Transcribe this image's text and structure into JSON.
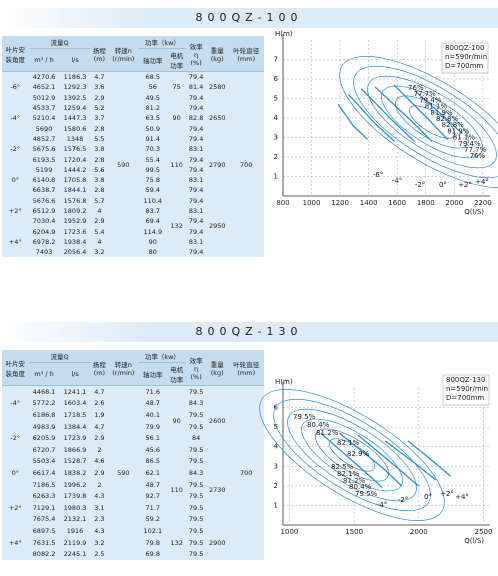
{
  "sections": [
    {
      "model": "800QZ-100",
      "table": {
        "headers": {
          "angle": "叶片安\n装角度",
          "flow": "流量Q",
          "flow_m3h": "m³ / h",
          "flow_ls": "l/s",
          "head": "扬程\n(m)",
          "speed": "转速n\n(r/min)",
          "power": "功率（kw）",
          "shaft": "轴功率",
          "motor": "电机\n功率",
          "eff": "效率\nη\n(%)",
          "weight": "重量\n(kg)",
          "dia": "叶轮直径\n(mm)"
        },
        "speed": 590,
        "diameter": 700,
        "groups": [
          {
            "angle": "-6°",
            "rows": [
              [
                4270.6,
                1186.3,
                4.7,
                68.5,
                79.4
              ],
              [
                4652.1,
                1292.3,
                3.6,
                56.0,
                81.4
              ],
              [
                5012.9,
                1392.5,
                2.9,
                49.5,
                79.4
              ]
            ],
            "motor": 75,
            "weight": 2580
          },
          {
            "angle": "-4°",
            "rows": [
              [
                4533.7,
                1259.4,
                5.2,
                81.2,
                79.4
              ],
              [
                5210.4,
                1447.3,
                3.7,
                63.5,
                82.8
              ],
              [
                5690.0,
                1580.6,
                2.8,
                50.9,
                79.4
              ]
            ],
            "motor": 90,
            "weight": 2650
          },
          {
            "angle": "-2°",
            "rows": [
              [
                4852.7,
                1348.0,
                5.5,
                91.4,
                79.4
              ],
              [
                5675.6,
                1576.5,
                3.8,
                70.3,
                83.1
              ],
              [
                6193.5,
                1720.4,
                2.8,
                55.4,
                79.4
              ]
            ],
            "motor": 110,
            "weight": 2790
          },
          {
            "angle": "0°",
            "rows": [
              [
                5199.0,
                1444.2,
                5.6,
                99.5,
                79.4
              ],
              [
                6140.8,
                1705.8,
                3.8,
                75.8,
                83.1
              ],
              [
                6638.7,
                1844.1,
                2.8,
                59.4,
                79.4
              ]
            ],
            "motor": null,
            "weight": null
          },
          {
            "angle": "+2°",
            "rows": [
              [
                5676.6,
                1576.8,
                5.7,
                110.4,
                79.4
              ],
              [
                6512.9,
                1809.2,
                4.0,
                83.7,
                83.1
              ],
              [
                7030.4,
                1952.9,
                2.9,
                69.4,
                79.4
              ]
            ],
            "motor": 132,
            "weight": 2950
          },
          {
            "angle": "+4°",
            "rows": [
              [
                6204.9,
                1723.6,
                5.4,
                114.9,
                79.4
              ],
              [
                6978.2,
                1938.4,
                4.0,
                90.0,
                83.1
              ],
              [
                7403.0,
                2056.4,
                3.2,
                80.0,
                79.4
              ]
            ],
            "motor": null,
            "weight": null
          }
        ]
      },
      "chart": {
        "type": "line",
        "y_label": "H(m)",
        "x_label": "Q(l/S)",
        "legend": [
          "800QZ-100",
          "n=590r/min",
          "D=700mm"
        ],
        "xlim": [
          800,
          2250
        ],
        "ylim": [
          0,
          8
        ],
        "xticks": [
          800,
          1000,
          1200,
          1400,
          1600,
          1800,
          2000,
          2200
        ],
        "yticks": [
          1,
          2,
          3,
          4,
          5,
          6,
          7
        ],
        "grid": true,
        "efficiency_labels": [
          "76%",
          "77.7%",
          "79.4%",
          "81.1%",
          "81.9%",
          "82.8%",
          "82.8%",
          "81.9%",
          "81.1%",
          "79.4%",
          "77.7%",
          "76%"
        ],
        "angle_labels": [
          "-6°",
          "-4°",
          "-2°",
          "0°",
          "+2°",
          "+4°"
        ]
      }
    },
    {
      "model": "800QZ-130",
      "table": {
        "headers": {
          "angle": "叶片安\n装角度",
          "flow": "流量Q",
          "flow_m3h": "m³ / h",
          "flow_ls": "l/s",
          "head": "扬程\n(m)",
          "speed": "转速n\n(r/min)",
          "power": "功率（kw）",
          "shaft": "轴功率",
          "motor": "电机\n功率",
          "eff": "效率\nη\n(%)",
          "weight": "重量\n(kg)",
          "dia": "叶轮直径\n(mm)"
        },
        "speed": 590,
        "diameter": 700,
        "groups": [
          {
            "angle": "-4°",
            "rows": [
              [
                4468.1,
                1241.1,
                4.7,
                71.6,
                79.5
              ],
              [
                5772.2,
                1603.4,
                2.6,
                48.7,
                84.3
              ],
              [
                6186.8,
                1718.5,
                1.9,
                40.1,
                79.5
              ]
            ],
            "motor": 90,
            "weight": 2600
          },
          {
            "angle": "-2°",
            "rows": [
              [
                4983.9,
                1384.4,
                4.7,
                79.9,
                79.5
              ],
              [
                6205.9,
                1723.9,
                2.9,
                56.1,
                84.0
              ],
              [
                6720.7,
                1866.9,
                2.0,
                45.6,
                79.5
              ]
            ],
            "motor": null,
            "weight": null
          },
          {
            "angle": "0°",
            "rows": [
              [
                5503.4,
                1528.7,
                4.6,
                86.5,
                79.5
              ],
              [
                6617.4,
                1838.2,
                2.9,
                62.1,
                84.3
              ],
              [
                7186.5,
                1996.2,
                2.0,
                48.7,
                79.5
              ]
            ],
            "motor": 110,
            "weight": 2730
          },
          {
            "angle": "+2°",
            "rows": [
              [
                6263.3,
                1739.8,
                4.3,
                92.7,
                79.5
              ],
              [
                7129.1,
                1980.3,
                3.1,
                71.7,
                79.5
              ],
              [
                7675.4,
                2132.1,
                2.3,
                59.2,
                79.5
              ]
            ],
            "motor": null,
            "weight": null
          },
          {
            "angle": "+4°",
            "rows": [
              [
                6897.5,
                1916.0,
                4.3,
                102.1,
                79.5
              ],
              [
                7631.5,
                2119.9,
                3.2,
                79.8,
                79.5
              ],
              [
                8082.2,
                2245.1,
                2.5,
                69.8,
                79.5
              ]
            ],
            "motor": 132,
            "weight": 2900
          }
        ]
      },
      "chart": {
        "type": "line",
        "y_label": "H(m)",
        "x_label": "Q(l/S)",
        "legend": [
          "800QZ-130",
          "n=590r/min",
          "D=700mm"
        ],
        "xlim": [
          950,
          2550
        ],
        "ylim": [
          0,
          7
        ],
        "xticks": [
          1000,
          1500,
          2000,
          2500
        ],
        "yticks": [
          1,
          2,
          3,
          4,
          5,
          6
        ],
        "grid": true,
        "efficiency_labels": [
          "79.5%",
          "80.4%",
          "81.2%",
          "82.1%",
          "82.9%",
          "82.5%",
          "82.1%",
          "81.2%",
          "80.4%",
          "79.5%"
        ],
        "angle_labels": [
          "-4°",
          "-2°",
          "0°",
          "+2°",
          "+4°"
        ]
      }
    }
  ]
}
